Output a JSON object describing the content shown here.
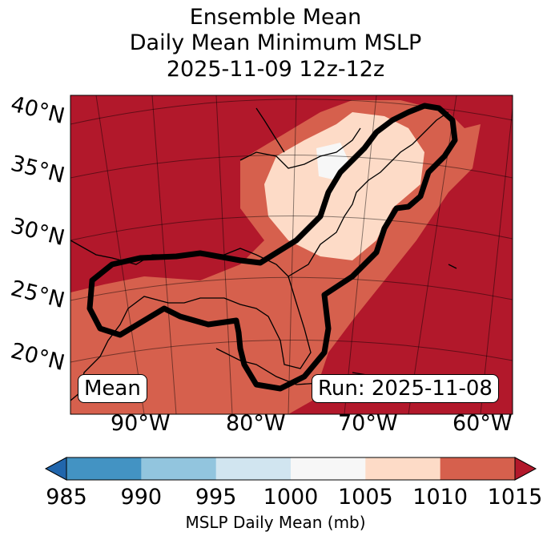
{
  "title": [
    "Ensemble Mean",
    "Daily Mean Minimum MSLP",
    "2025-11-09 12z-12z"
  ],
  "map": {
    "lat_labels": [
      "40°N",
      "35°N",
      "30°N",
      "25°N",
      "20°N"
    ],
    "lon_labels": [
      "90°W",
      "80°W",
      "70°W",
      "60°W"
    ],
    "label_left": "Mean",
    "label_right": "Run: 2025-11-08",
    "field_colors": {
      "1000-1005": "#f7f7f7",
      "1005-1010": "#fddbc7",
      "1010-1015": "#d6604d",
      ">1015": "#b2182b"
    }
  },
  "colorbar": {
    "label": "MSLP Daily Mean (mb)",
    "ticks": [
      "985",
      "990",
      "995",
      "1000",
      "1005",
      "1010",
      "1015"
    ],
    "colors": [
      "#4393c3",
      "#92c5de",
      "#d1e5f0",
      "#f7f7f7",
      "#fddbc7",
      "#d6604d"
    ],
    "under_color": "#2166ac",
    "over_color": "#b2182b"
  }
}
